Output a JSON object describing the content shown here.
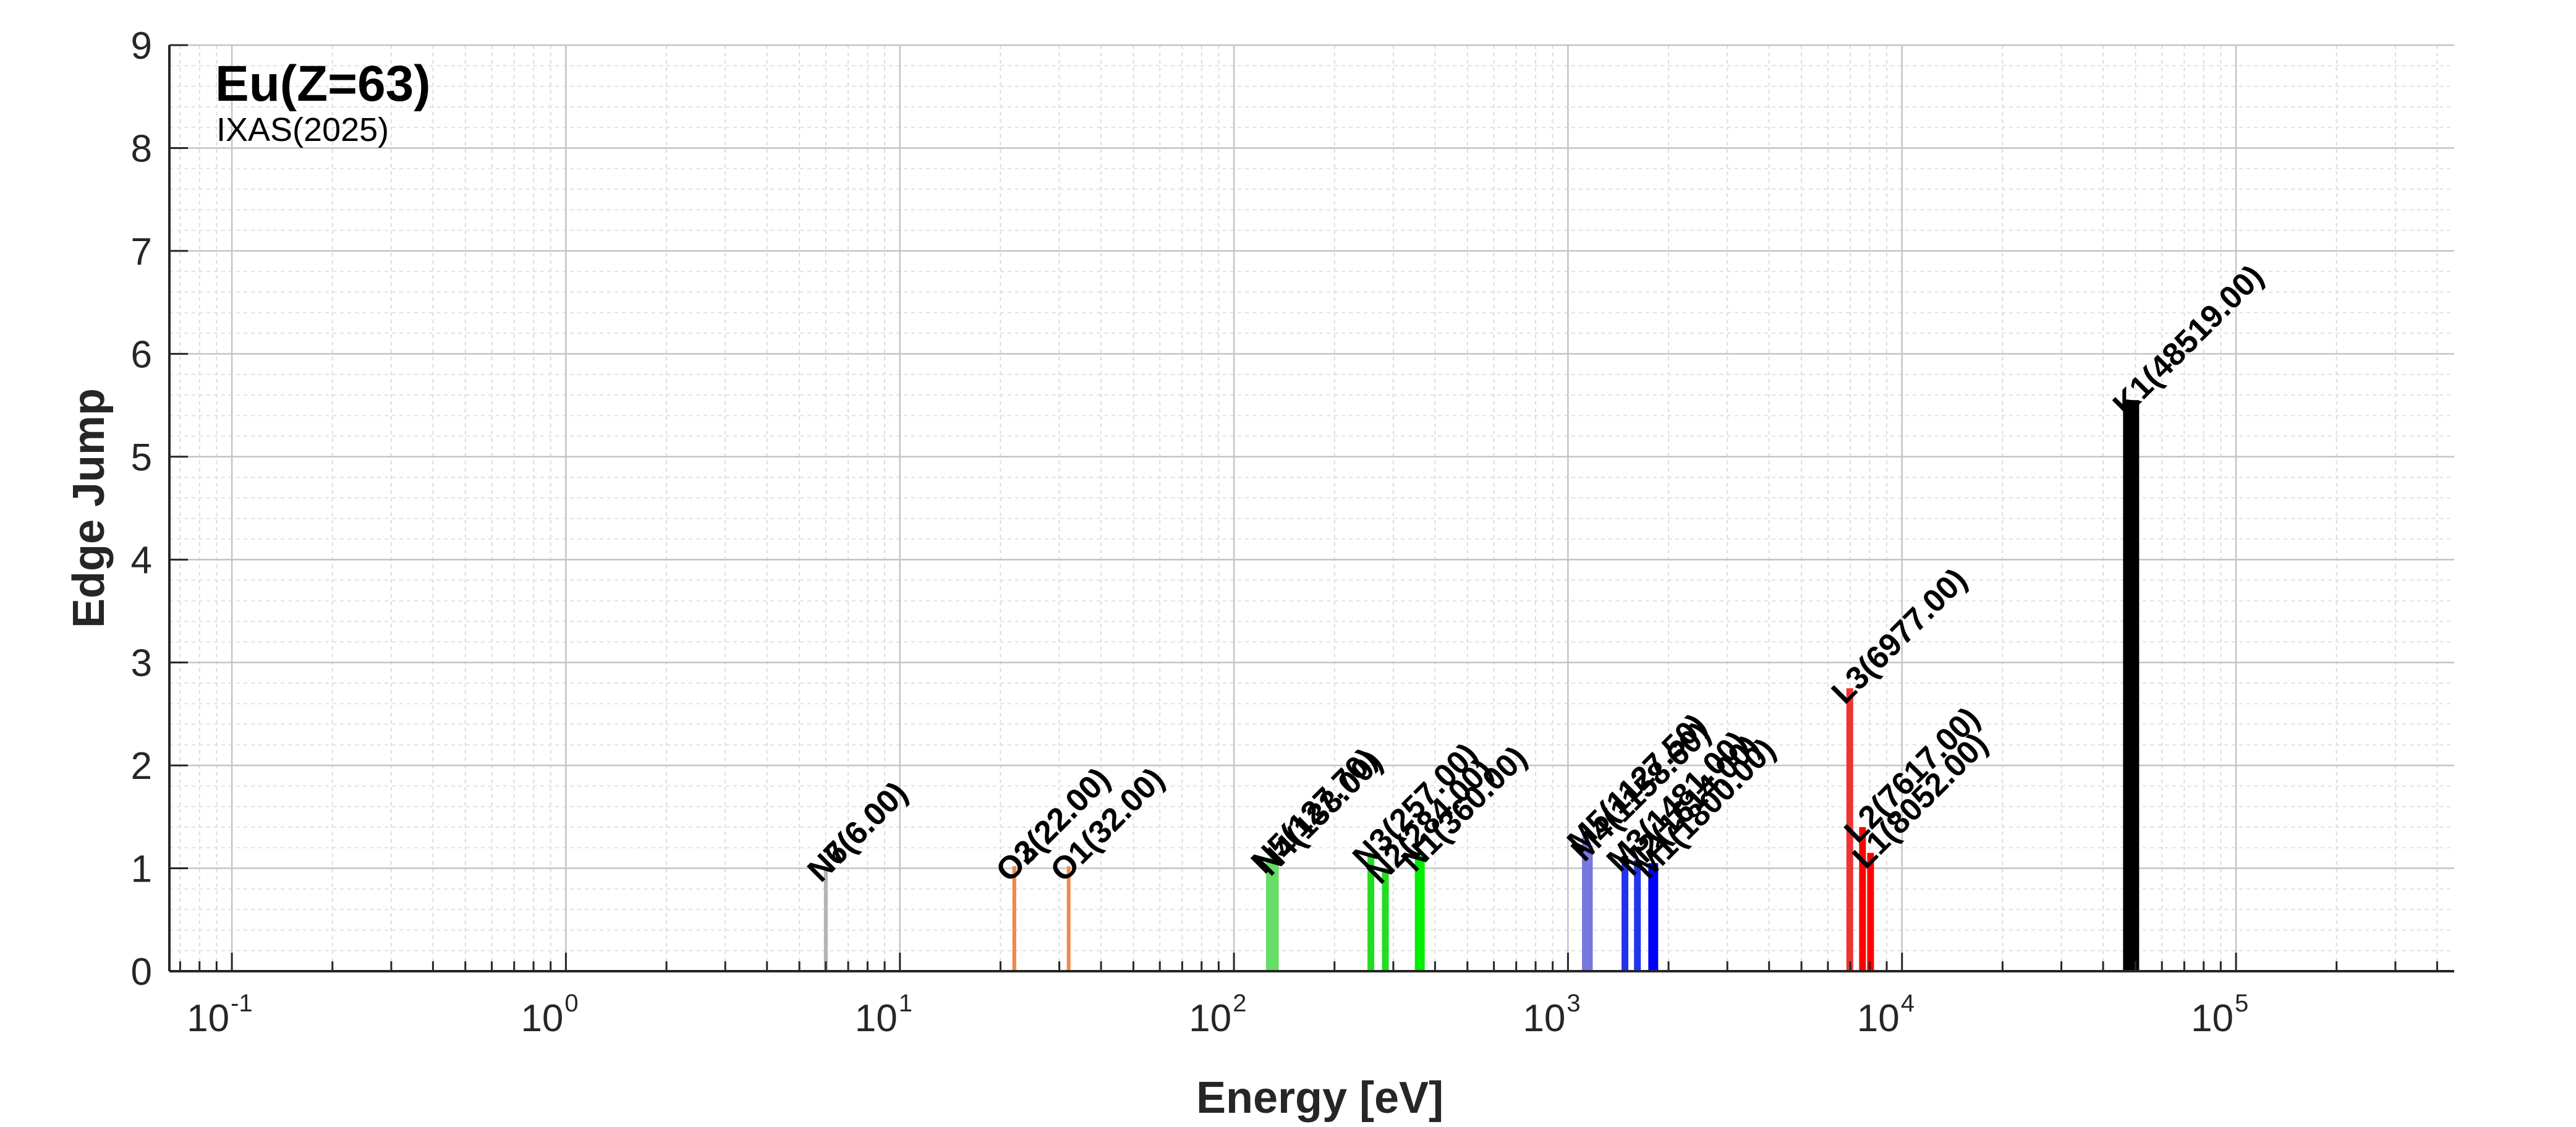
{
  "chart_data": {
    "type": "bar",
    "title": "Eu(Z=63)",
    "subtitle": "IXAS(2025)",
    "xlabel": "Energy [eV]",
    "ylabel": "Edge Jump",
    "xscale": "log",
    "xlim": [
      0.065,
      450000
    ],
    "ylim": [
      0,
      9
    ],
    "yticks": [
      0,
      1,
      2,
      3,
      4,
      5,
      6,
      7,
      8,
      9
    ],
    "xticks": [
      {
        "value": 0.1,
        "base": "10",
        "exp": "-1"
      },
      {
        "value": 1,
        "base": "10",
        "exp": "0"
      },
      {
        "value": 10,
        "base": "10",
        "exp": "1"
      },
      {
        "value": 100,
        "base": "10",
        "exp": "2"
      },
      {
        "value": 1000,
        "base": "10",
        "exp": "3"
      },
      {
        "value": 10000,
        "base": "10",
        "exp": "4"
      },
      {
        "value": 100000,
        "base": "10",
        "exp": "5"
      }
    ],
    "grid": true,
    "edges": [
      {
        "label": "N7(6.00)",
        "energy": 6.0,
        "jump": 1.02,
        "color": "#b3b3b3",
        "weight": "thin"
      },
      {
        "label": "N6(6.00)",
        "energy": 6.0,
        "jump": 1.02,
        "color": "#b3b3b3",
        "weight": "thin"
      },
      {
        "label": "O3(22.00)",
        "energy": 22.0,
        "jump": 1.02,
        "color": "#ef8a4c",
        "weight": "thin"
      },
      {
        "label": "O2(22.00)",
        "energy": 22.0,
        "jump": 1.02,
        "color": "#ef8a4c",
        "weight": "thin"
      },
      {
        "label": "O1(32.00)",
        "energy": 32.0,
        "jump": 1.02,
        "color": "#ef8a4c",
        "weight": "thin"
      },
      {
        "label": "N5(127.70)",
        "energy": 127.7,
        "jump": 1.1,
        "color": "#66dd66",
        "weight": "normal"
      },
      {
        "label": "N4(133.00)",
        "energy": 133.0,
        "jump": 1.08,
        "color": "#66dd66",
        "weight": "normal"
      },
      {
        "label": "N3(257.00)",
        "energy": 257.0,
        "jump": 1.15,
        "color": "#22dd22",
        "weight": "normal"
      },
      {
        "label": "N2(284.00)",
        "energy": 284.0,
        "jump": 1.0,
        "color": "#22dd22",
        "weight": "normal"
      },
      {
        "label": "N1(360.00)",
        "energy": 360.0,
        "jump": 1.12,
        "color": "#00ee00",
        "weight": "thick"
      },
      {
        "label": "M5(1127.50)",
        "energy": 1127.5,
        "jump": 1.3,
        "color": "#7777dd",
        "weight": "normal"
      },
      {
        "label": "M4(1158.60)",
        "energy": 1158.6,
        "jump": 1.22,
        "color": "#7777dd",
        "weight": "normal"
      },
      {
        "label": "M3(1481.00)",
        "energy": 1481.0,
        "jump": 1.12,
        "color": "#2233ee",
        "weight": "normal"
      },
      {
        "label": "M2(1614.00)",
        "energy": 1614.0,
        "jump": 1.08,
        "color": "#2233ee",
        "weight": "normal"
      },
      {
        "label": "M1(1800.00)",
        "energy": 1800.0,
        "jump": 1.05,
        "color": "#0000ff",
        "weight": "thick"
      },
      {
        "label": "L3(6977.00)",
        "energy": 6977.0,
        "jump": 2.75,
        "color": "#ee3333",
        "weight": "normal"
      },
      {
        "label": "L2(7617.00)",
        "energy": 7617.0,
        "jump": 1.4,
        "color": "#ff0000",
        "weight": "normal"
      },
      {
        "label": "L1(8052.00)",
        "energy": 8052.0,
        "jump": 1.15,
        "color": "#ff0000",
        "weight": "normal"
      },
      {
        "label": "K1(48519.00)",
        "energy": 48519.0,
        "jump": 5.55,
        "color": "#000000",
        "weight": "heavy"
      }
    ]
  }
}
